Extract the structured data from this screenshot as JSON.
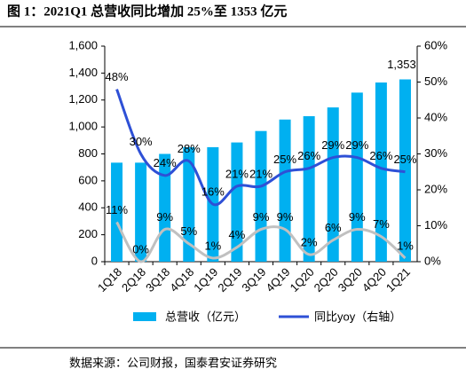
{
  "chart_data": {
    "type": "combo",
    "title": "图 1：2021Q1 总营收同比增加 25%至 1353 亿元",
    "source": "数据来源：公司财报，国泰君安证券研究",
    "categories": [
      "1Q18",
      "2Q18",
      "3Q18",
      "4Q18",
      "1Q19",
      "2Q19",
      "3Q19",
      "4Q19",
      "1Q20",
      "2Q20",
      "3Q20",
      "4Q20",
      "1Q21"
    ],
    "ylim": [
      0,
      1600
    ],
    "yticks": [
      0,
      200,
      400,
      600,
      800,
      {
        "value": 1000,
        "label": "1,000"
      },
      {
        "value": 1200,
        "label": "1,200"
      },
      {
        "value": 1400,
        "label": "1,400"
      },
      {
        "value": 1600,
        "label": "1,600"
      }
    ],
    "y2lim": [
      0,
      60
    ],
    "y2ticks": [
      {
        "value": 0,
        "label": "0%"
      },
      {
        "value": 10,
        "label": "10%"
      },
      {
        "value": 20,
        "label": "20%"
      },
      {
        "value": 30,
        "label": "30%"
      },
      {
        "value": 40,
        "label": "40%"
      },
      {
        "value": 50,
        "label": "50%"
      },
      {
        "value": 60,
        "label": "60%"
      }
    ],
    "series": [
      {
        "name": "总营收（亿元）",
        "type": "bar",
        "color": "#00b0f0",
        "values": [
          735,
          735,
          800,
          850,
          850,
          885,
          970,
          1055,
          1080,
          1145,
          1255,
          1330,
          1353
        ],
        "value_labels": [
          null,
          null,
          null,
          null,
          null,
          null,
          null,
          null,
          null,
          null,
          null,
          null,
          "1,353"
        ]
      },
      {
        "name": "同比yoy（右轴）",
        "type": "line",
        "axis": "y2",
        "color": "#2e50d6",
        "values": [
          48,
          30,
          24,
          28,
          16,
          21,
          21,
          25,
          26,
          29,
          29,
          26,
          25
        ],
        "value_labels": [
          "48%",
          "30%",
          "24%",
          "28%",
          "16%",
          "21%",
          "21%",
          "25%",
          "26%",
          "29%",
          "29%",
          "26%",
          "25%"
        ]
      },
      {
        "type": "line",
        "axis": "y2",
        "color": "#c0c0c0",
        "values": [
          11,
          0,
          9,
          5,
          1,
          4,
          9,
          9,
          2,
          6,
          9,
          7,
          1
        ],
        "value_labels": [
          "11%",
          "0%",
          "9%",
          "5%",
          "1%",
          "4%",
          "9%",
          "9%",
          "2%",
          "6%",
          "9%",
          "7%",
          "1%"
        ]
      }
    ]
  }
}
